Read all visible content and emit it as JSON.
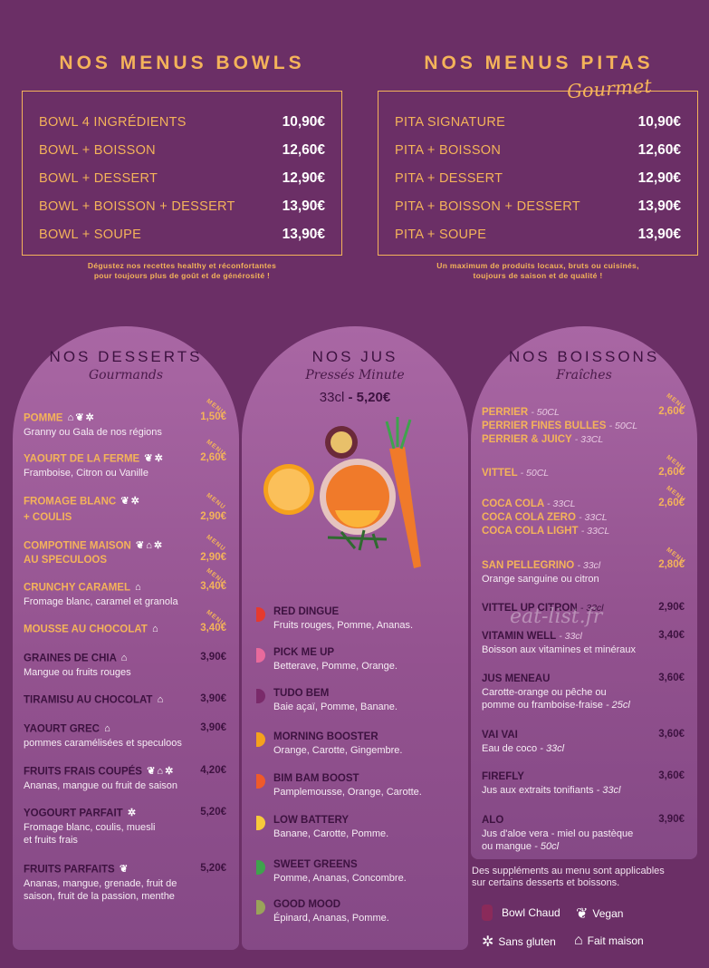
{
  "bowls": {
    "title": "NOS MENUS BOWLS",
    "items": [
      {
        "name": "BOWL 4 INGRÉDIENTS",
        "price": "10,90€"
      },
      {
        "name": "BOWL + BOISSON",
        "price": "12,60€"
      },
      {
        "name": "BOWL + DESSERT",
        "price": "12,90€"
      },
      {
        "name": "BOWL + BOISSON + DESSERT",
        "price": "13,90€"
      },
      {
        "name": "BOWL + SOUPE",
        "price": "13,90€"
      }
    ],
    "tagline_1": "Dégustez nos recettes healthy et réconfortantes",
    "tagline_2": "pour toujours plus de goût et de générosité !"
  },
  "pitas": {
    "title": "NOS MENUS PITAS",
    "subtitle": "Gourmet",
    "items": [
      {
        "name": "PITA SIGNATURE",
        "price": "10,90€"
      },
      {
        "name": "PITA + BOISSON",
        "price": "12,60€"
      },
      {
        "name": "PITA + DESSERT",
        "price": "12,90€"
      },
      {
        "name": "PITA + BOISSON + DESSERT",
        "price": "13,90€"
      },
      {
        "name": "PITA + SOUPE",
        "price": "13,90€"
      }
    ],
    "tagline_1": "Un maximum de produits locaux, bruts ou cuisinés,",
    "tagline_2": "toujours de saison et de qualité !"
  },
  "desserts": {
    "title": "NOS DESSERTS",
    "subtitle": "Gourmands",
    "menu_tag": "MENU",
    "items": [
      {
        "name": "POMME",
        "desc": "Granny ou Gala de nos régions",
        "price": "1,50€"
      },
      {
        "name": "YAOURT DE LA FERME",
        "desc": "Framboise, Citron ou Vanille",
        "price": "2,60€"
      },
      {
        "name": "FROMAGE BLANC",
        "name2": "+ COULIS",
        "price": "2,90€"
      },
      {
        "name": "COMPOTINE MAISON",
        "name2": "AU SPECULOOS",
        "price": "2,90€"
      },
      {
        "name": "CRUNCHY CARAMEL",
        "desc": "Fromage blanc, caramel et granola",
        "price": "3,40€"
      },
      {
        "name": "MOUSSE AU CHOCOLAT",
        "price": "3,40€"
      },
      {
        "name": "GRAINES DE CHIA",
        "desc": "Mangue ou fruits rouges",
        "price": "3,90€"
      },
      {
        "name": "TIRAMISU AU CHOCOLAT",
        "price": "3,90€"
      },
      {
        "name": "YAOURT GREC",
        "desc": "pommes caramélisées et speculoos",
        "price": "3,90€"
      },
      {
        "name": "FRUITS FRAIS COUPÉS",
        "desc": "Ananas, mangue ou fruit de saison",
        "price": "4,20€"
      },
      {
        "name": "YOGOURT PARFAIT",
        "desc": "Fromage blanc, coulis, muesli",
        "desc2": "et fruits frais",
        "price": "5,20€"
      },
      {
        "name": "FRUITS PARFAITS",
        "desc": "Ananas, mangue, grenade, fruit de",
        "desc2": "saison, fruit de la passion, menthe",
        "price": "5,20€"
      }
    ]
  },
  "jus": {
    "title": "NOS JUS",
    "subtitle": "Pressés Minute",
    "size": "33cl",
    "price": "- 5,20€",
    "items": [
      {
        "name": "RED DINGUE",
        "desc": "Fruits rouges, Pomme, Ananas.",
        "color": "#e63a2e"
      },
      {
        "name": "PICK ME UP",
        "desc": "Betterave, Pomme, Orange.",
        "color": "#e86a9c"
      },
      {
        "name": "TUDO BEM",
        "desc": "Baie açaï, Pomme, Banane.",
        "color": "#7a2a6a"
      },
      {
        "name": "MORNING BOOSTER",
        "desc": "Orange, Carotte, Gingembre.",
        "color": "#f5a11c"
      },
      {
        "name": "BIM BAM BOOST",
        "desc": "Pamplemousse, Orange,  Carotte.",
        "color": "#ef5a2a"
      },
      {
        "name": "LOW BATTERY",
        "desc": "Banane, Carotte, Pomme.",
        "color": "#f7c93b"
      },
      {
        "name": "SWEET GREENS",
        "desc": "Pomme, Ananas, Concombre.",
        "color": "#3fa34d"
      },
      {
        "name": "GOOD MOOD",
        "desc": "Épinard, Ananas, Pomme.",
        "color": "#9aa35a"
      }
    ]
  },
  "boissons": {
    "title": "NOS BOISSONS",
    "subtitle": "Fraîches",
    "menu_tag": "MENU",
    "items": [
      {
        "name": "PERRIER",
        "vol": "- 50CL",
        "price": "2,60€"
      },
      {
        "name": "PERRIER FINES BULLES",
        "vol": "- 50CL"
      },
      {
        "name": "PERRIER & JUICY",
        "vol": "- 33CL"
      },
      {
        "name": "VITTEL",
        "vol": "- 50CL",
        "price": "2,60€"
      },
      {
        "name": "COCA COLA",
        "vol": "- 33CL",
        "price": "2,60€"
      },
      {
        "name": "COCA COLA ZERO",
        "vol": "- 33CL"
      },
      {
        "name": "COCA COLA LIGHT",
        "vol": "- 33CL"
      },
      {
        "name": "SAN PELLEGRINO",
        "vol": "- 33cl",
        "desc": "Orange sanguine ou citron",
        "price": "2,80€"
      },
      {
        "name": "VITTEL UP CITRON",
        "vol": "- 33cl",
        "price": "2,90€"
      },
      {
        "name": "VITAMIN WELL",
        "vol": "- 33cl",
        "desc": "Boisson aux vitamines et minéraux",
        "price": "3,40€"
      },
      {
        "name": "JUS MENEAU",
        "desc": "Carotte-orange ou pêche ou",
        "desc2": "pomme ou framboise-fraise",
        "vol2": "- 25cl",
        "price": "3,60€"
      },
      {
        "name": "VAI VAI",
        "desc": "Eau de coco",
        "vol2": "- 33cl",
        "price": "3,60€"
      },
      {
        "name": "FIREFLY",
        "desc": "Jus aux extraits tonifiants",
        "vol2": "- 33cl",
        "price": "3,60€"
      },
      {
        "name": "ALO",
        "desc": "Jus d'aloe vera - miel ou pastèque",
        "desc2": "ou mangue",
        "vol2": "- 50cl",
        "price": "3,90€"
      }
    ]
  },
  "watermark": "eat-list.fr",
  "legend": {
    "note_1": "Des suppléments au menu sont applicables",
    "note_2": "sur certains desserts et boissons.",
    "bowl_chaud": "Bowl Chaud",
    "vegan": "Vegan",
    "sans_gluten": "Sans gluten",
    "fait_maison": "Fait maison"
  }
}
